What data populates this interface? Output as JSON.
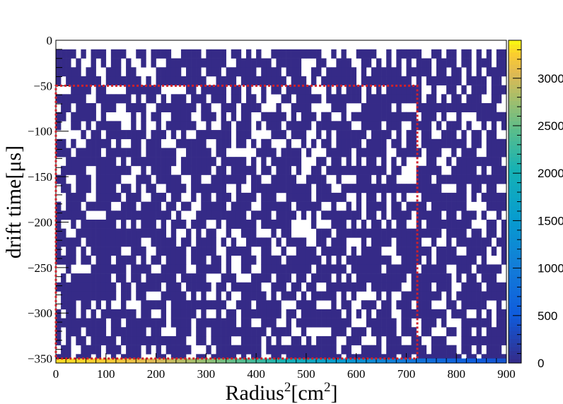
{
  "chart_data": {
    "type": "heatmap",
    "xlabel": "Radius",
    "xlabel_sup1": "2",
    "xlabel_unit": "[cm",
    "xlabel_sup2": "2",
    "xlabel_close": "]",
    "ylabel": "drift time[μs]",
    "xlim": [
      0,
      900
    ],
    "ylim": [
      -355,
      0
    ],
    "x_ticks": [
      "0",
      "100",
      "200",
      "300",
      "400",
      "500",
      "600",
      "700",
      "800",
      "900"
    ],
    "y_ticks": [
      "0",
      "−50",
      "−100",
      "−150",
      "−200",
      "−250",
      "−300",
      "−350"
    ],
    "colorbar": {
      "range": [
        0,
        3400
      ],
      "ticks": [
        "0",
        "500",
        "1000",
        "1500",
        "2000",
        "2500",
        "3000"
      ]
    },
    "grid": false,
    "bins": {
      "nx": 90,
      "ny": 35,
      "x_range": [
        0,
        900
      ],
      "y_range": [
        -355,
        -10
      ]
    },
    "occupied_fraction": 0.72,
    "typical_count": 1,
    "bottom_row_peak": 3300,
    "selection_box": {
      "x": [
        0,
        722
      ],
      "y": [
        -350,
        -50
      ],
      "color": "#d0202a",
      "style": "dotted"
    },
    "colors": {
      "low": "#352a87",
      "high": "#f9fb0e"
    }
  }
}
